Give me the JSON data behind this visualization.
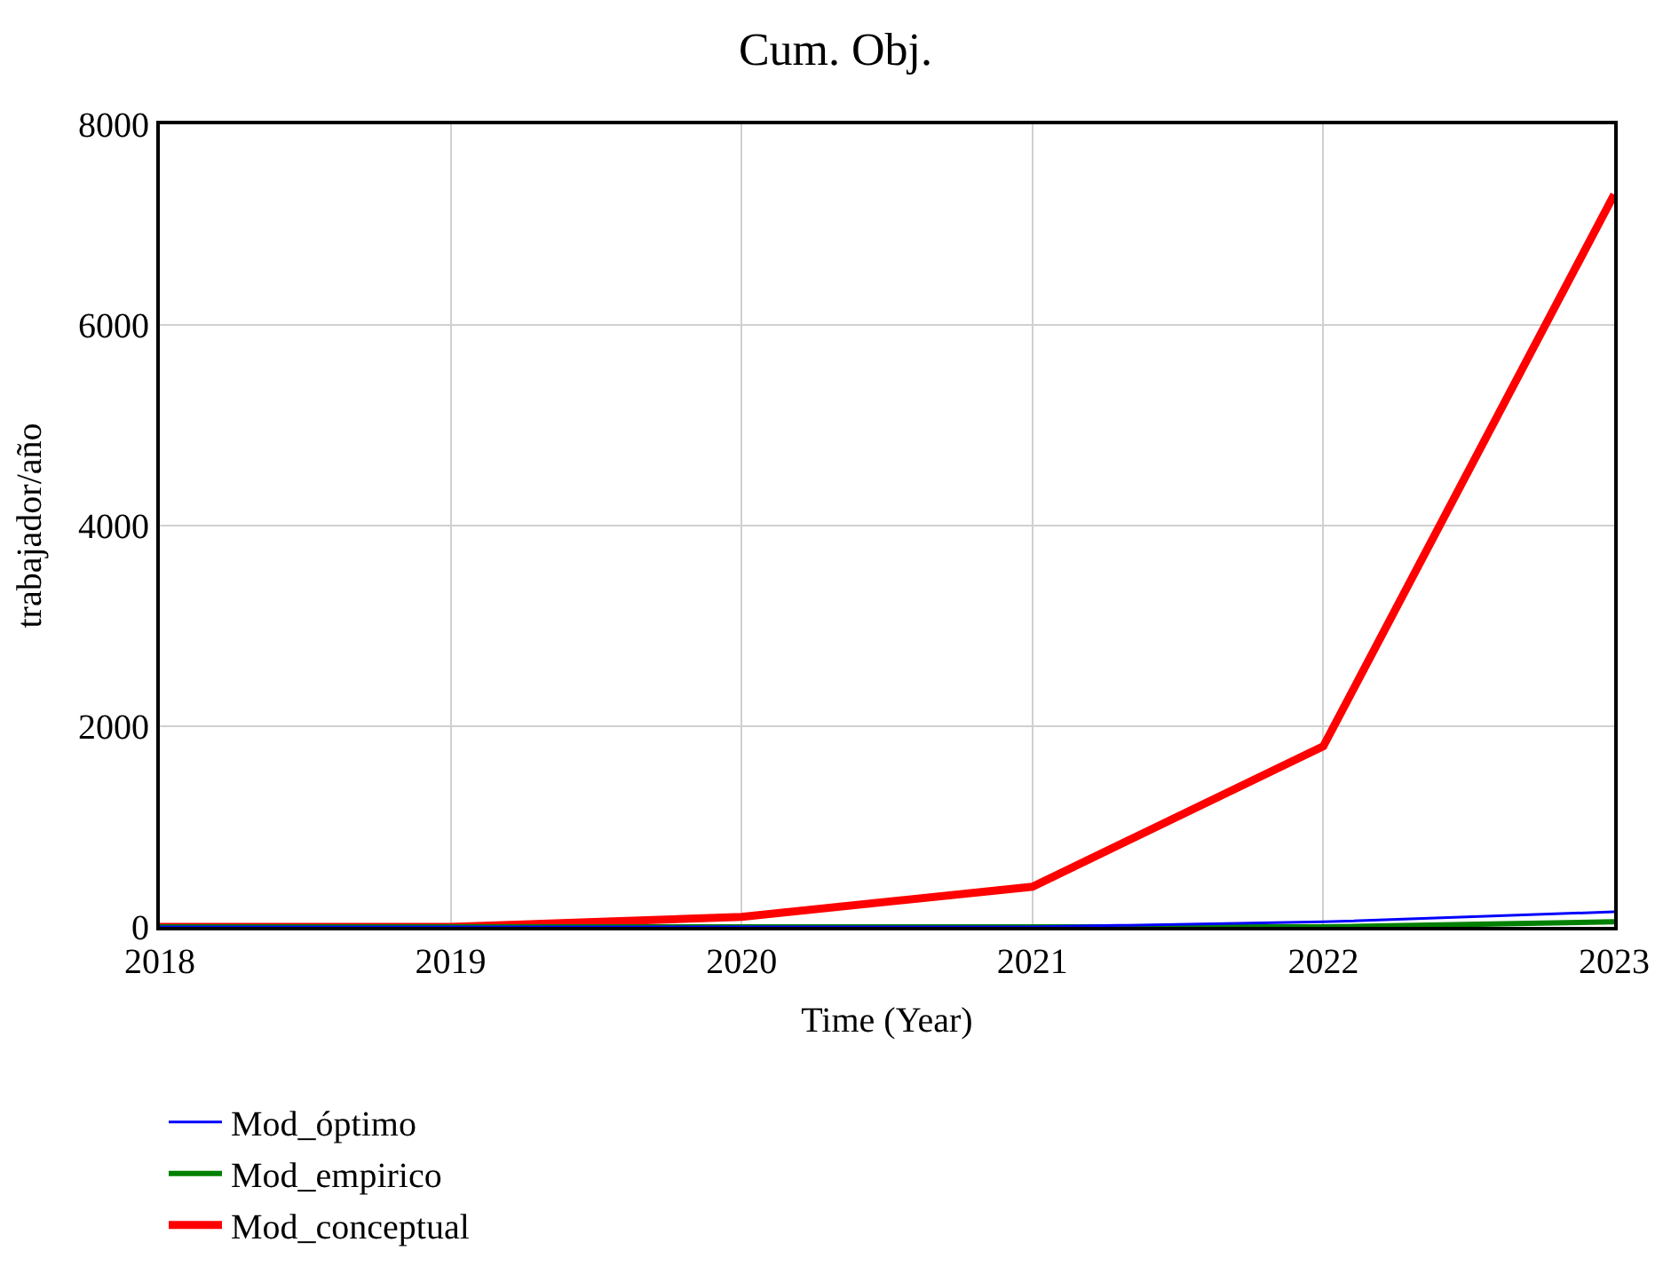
{
  "chart_data": {
    "type": "line",
    "title": "Cum. Obj.",
    "xlabel": "Time (Year)",
    "ylabel": "trabajador/año",
    "x": [
      2018,
      2019,
      2020,
      2021,
      2022,
      2023
    ],
    "series": [
      {
        "name": "Mod_óptimo",
        "color": "#0000ff",
        "values": [
          0,
          0,
          0,
          0,
          50,
          150
        ]
      },
      {
        "name": "Mod_empirico",
        "color": "#008000",
        "values": [
          0,
          0,
          0,
          0,
          0,
          50
        ]
      },
      {
        "name": "Mod_conceptual",
        "color": "#ff0000",
        "values": [
          0,
          0,
          100,
          400,
          1800,
          7300
        ]
      }
    ],
    "xlim": [
      2018,
      2023
    ],
    "xticks": [
      2018,
      2019,
      2020,
      2021,
      2022,
      2023
    ],
    "ylim": [
      0,
      8000
    ],
    "yticks": [
      0,
      2000,
      4000,
      6000,
      8000
    ],
    "grid": true,
    "legend": "bottom",
    "marker": "none",
    "line_style": "solid"
  }
}
